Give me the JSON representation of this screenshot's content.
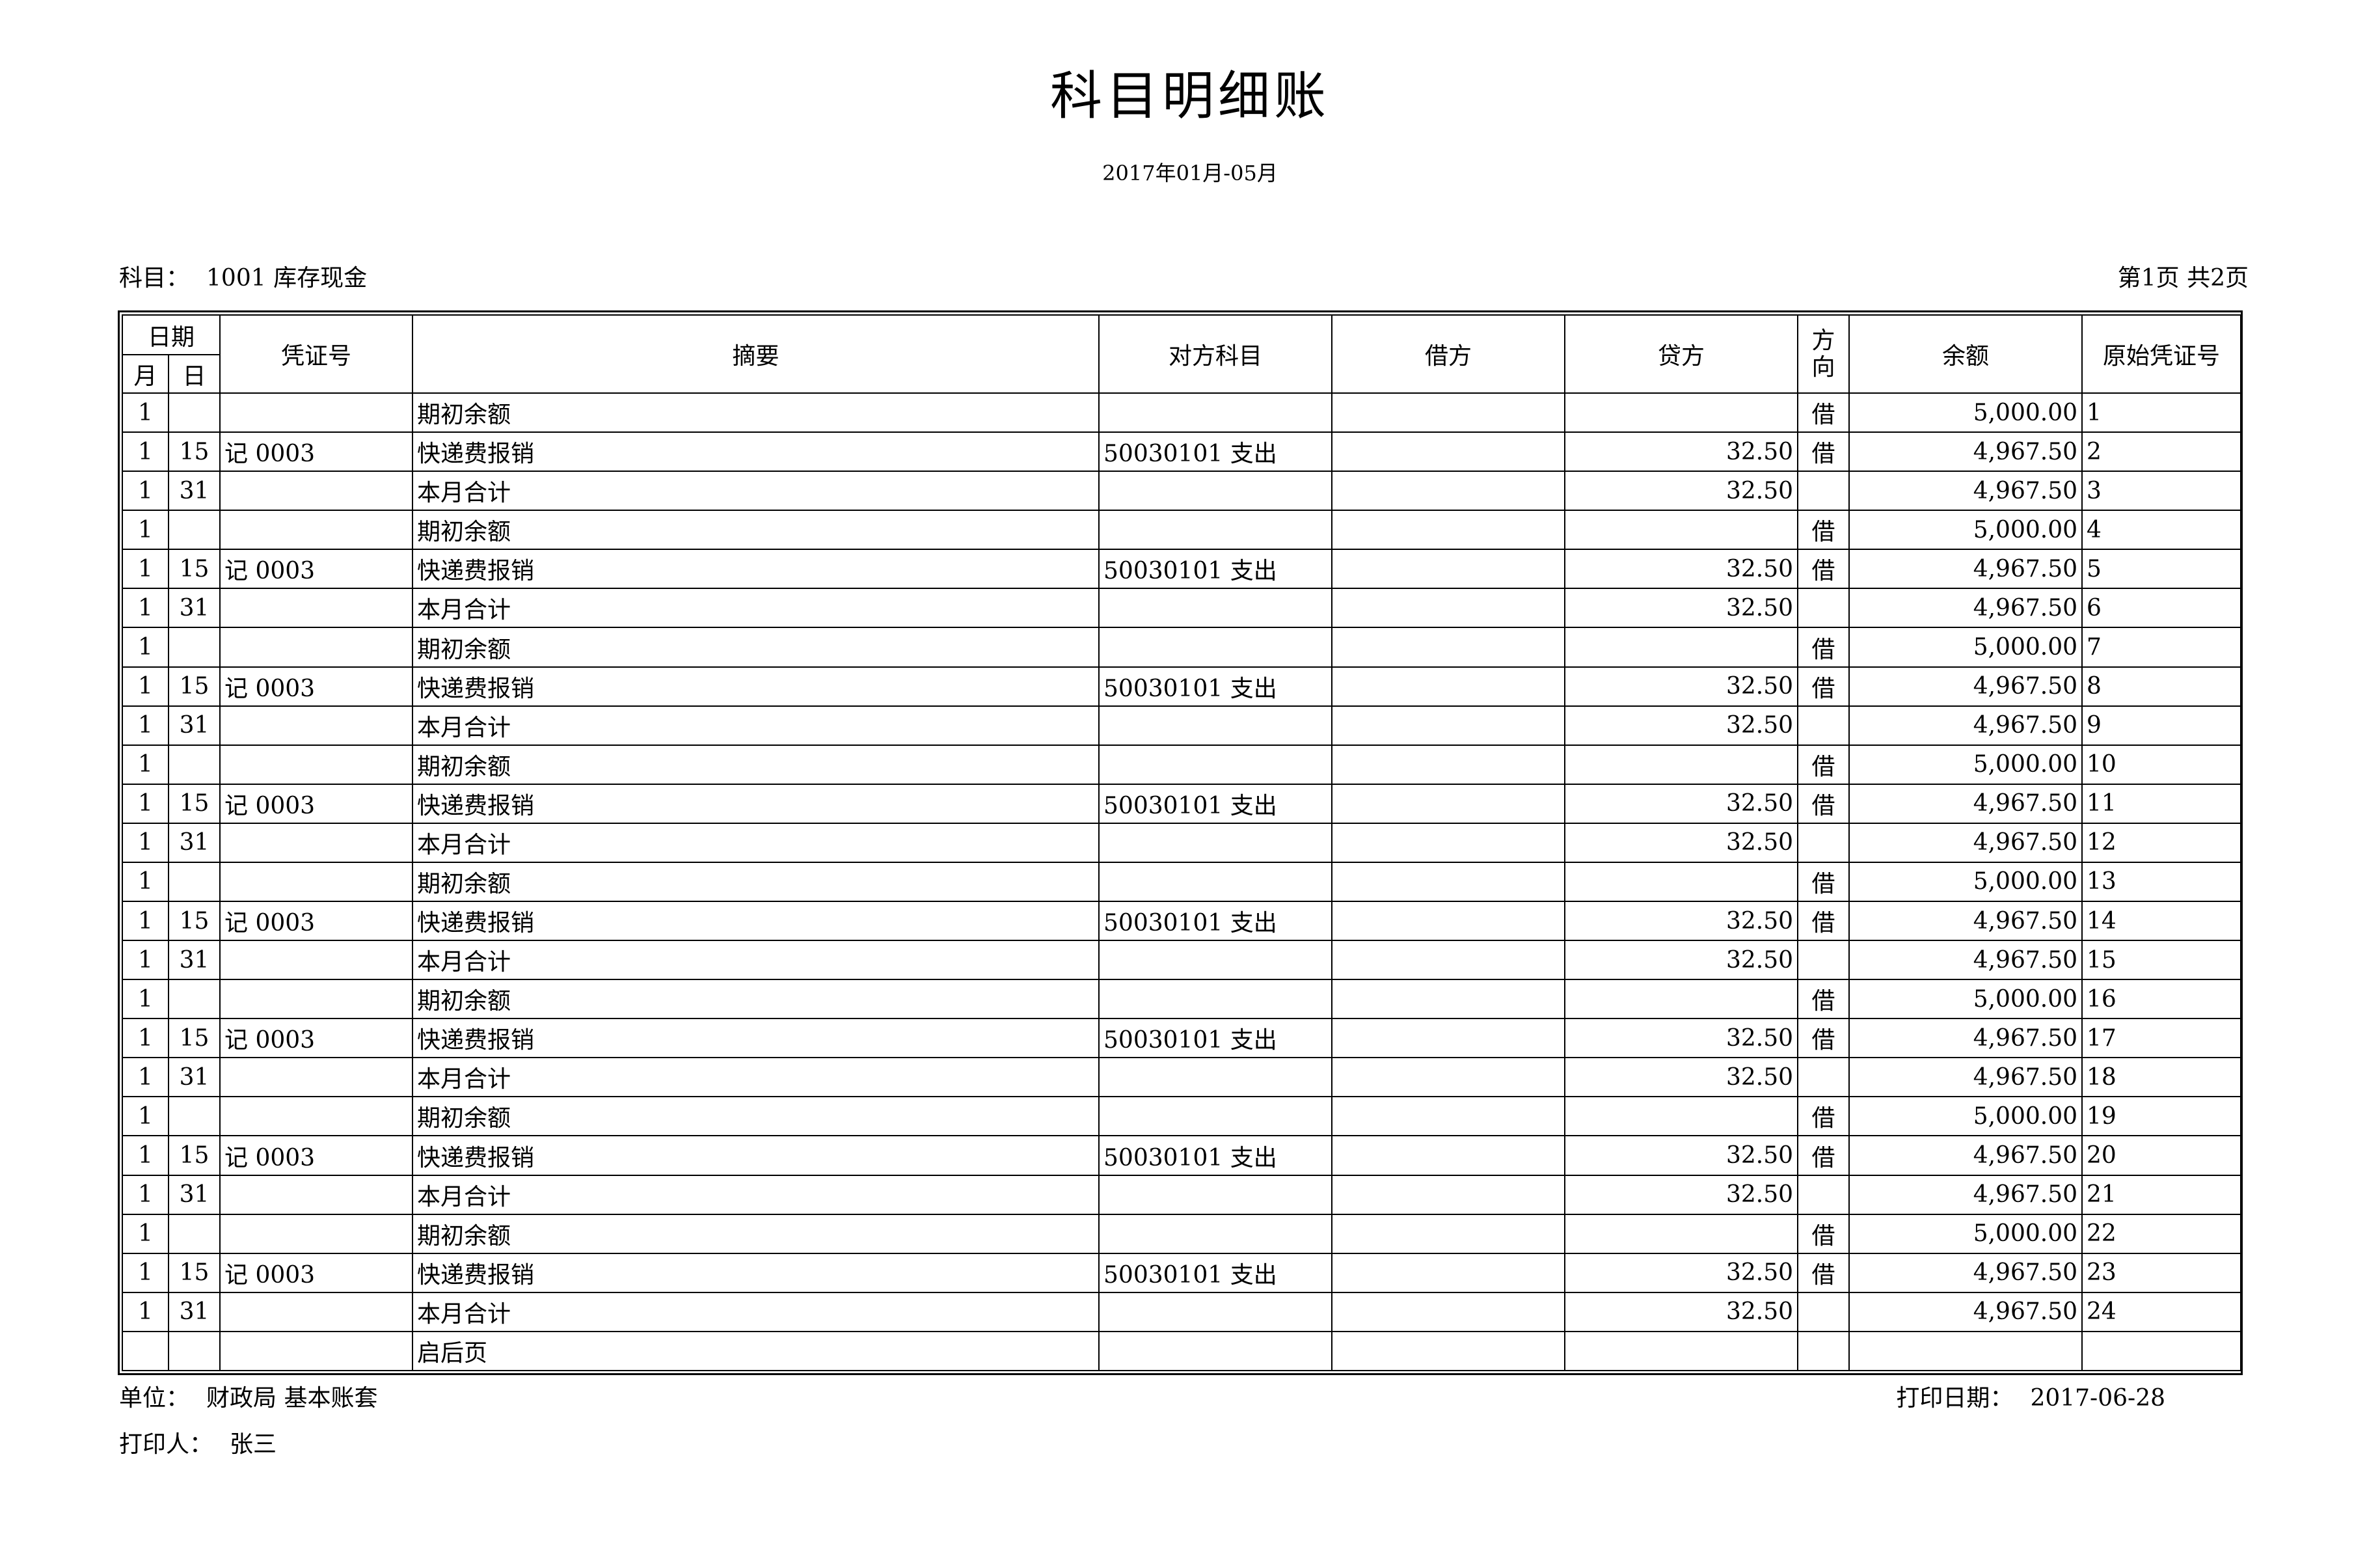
{
  "header": {
    "title": "科目明细账",
    "period": "2017年01月-05月",
    "subject_label": "科目：",
    "subject_value": "1001 库存现金",
    "page_info": "第1页 共2页"
  },
  "columns": {
    "date": "日期",
    "month": "月",
    "day": "日",
    "voucher_no": "凭证号",
    "summary": "摘要",
    "counter_account": "对方科目",
    "debit": "借方",
    "credit": "贷方",
    "direction_1": "方",
    "direction_2": "向",
    "balance": "余额",
    "original_voucher": "原始凭证号"
  },
  "rows": [
    {
      "month": "1",
      "day": "",
      "voucher": "",
      "summary": "期初余额",
      "account": "",
      "debit": "",
      "credit": "",
      "dir": "借",
      "balance": "5,000.00",
      "orig": "1"
    },
    {
      "month": "1",
      "day": "15",
      "voucher": "记 0003",
      "summary": "快递费报销",
      "account": "50030101 支出",
      "debit": "",
      "credit": "32.50",
      "dir": "借",
      "balance": "4,967.50",
      "orig": "2"
    },
    {
      "month": "1",
      "day": "31",
      "voucher": "",
      "summary": "本月合计",
      "account": "",
      "debit": "",
      "credit": "32.50",
      "dir": "",
      "balance": "4,967.50",
      "orig": "3"
    },
    {
      "month": "1",
      "day": "",
      "voucher": "",
      "summary": "期初余额",
      "account": "",
      "debit": "",
      "credit": "",
      "dir": "借",
      "balance": "5,000.00",
      "orig": "4"
    },
    {
      "month": "1",
      "day": "15",
      "voucher": "记 0003",
      "summary": "快递费报销",
      "account": "50030101 支出",
      "debit": "",
      "credit": "32.50",
      "dir": "借",
      "balance": "4,967.50",
      "orig": "5"
    },
    {
      "month": "1",
      "day": "31",
      "voucher": "",
      "summary": "本月合计",
      "account": "",
      "debit": "",
      "credit": "32.50",
      "dir": "",
      "balance": "4,967.50",
      "orig": "6"
    },
    {
      "month": "1",
      "day": "",
      "voucher": "",
      "summary": "期初余额",
      "account": "",
      "debit": "",
      "credit": "",
      "dir": "借",
      "balance": "5,000.00",
      "orig": "7"
    },
    {
      "month": "1",
      "day": "15",
      "voucher": "记 0003",
      "summary": "快递费报销",
      "account": "50030101 支出",
      "debit": "",
      "credit": "32.50",
      "dir": "借",
      "balance": "4,967.50",
      "orig": "8"
    },
    {
      "month": "1",
      "day": "31",
      "voucher": "",
      "summary": "本月合计",
      "account": "",
      "debit": "",
      "credit": "32.50",
      "dir": "",
      "balance": "4,967.50",
      "orig": "9"
    },
    {
      "month": "1",
      "day": "",
      "voucher": "",
      "summary": "期初余额",
      "account": "",
      "debit": "",
      "credit": "",
      "dir": "借",
      "balance": "5,000.00",
      "orig": "10"
    },
    {
      "month": "1",
      "day": "15",
      "voucher": "记 0003",
      "summary": "快递费报销",
      "account": "50030101 支出",
      "debit": "",
      "credit": "32.50",
      "dir": "借",
      "balance": "4,967.50",
      "orig": "11"
    },
    {
      "month": "1",
      "day": "31",
      "voucher": "",
      "summary": "本月合计",
      "account": "",
      "debit": "",
      "credit": "32.50",
      "dir": "",
      "balance": "4,967.50",
      "orig": "12"
    },
    {
      "month": "1",
      "day": "",
      "voucher": "",
      "summary": "期初余额",
      "account": "",
      "debit": "",
      "credit": "",
      "dir": "借",
      "balance": "5,000.00",
      "orig": "13"
    },
    {
      "month": "1",
      "day": "15",
      "voucher": "记 0003",
      "summary": "快递费报销",
      "account": "50030101 支出",
      "debit": "",
      "credit": "32.50",
      "dir": "借",
      "balance": "4,967.50",
      "orig": "14"
    },
    {
      "month": "1",
      "day": "31",
      "voucher": "",
      "summary": "本月合计",
      "account": "",
      "debit": "",
      "credit": "32.50",
      "dir": "",
      "balance": "4,967.50",
      "orig": "15"
    },
    {
      "month": "1",
      "day": "",
      "voucher": "",
      "summary": "期初余额",
      "account": "",
      "debit": "",
      "credit": "",
      "dir": "借",
      "balance": "5,000.00",
      "orig": "16"
    },
    {
      "month": "1",
      "day": "15",
      "voucher": "记 0003",
      "summary": "快递费报销",
      "account": "50030101 支出",
      "debit": "",
      "credit": "32.50",
      "dir": "借",
      "balance": "4,967.50",
      "orig": "17"
    },
    {
      "month": "1",
      "day": "31",
      "voucher": "",
      "summary": "本月合计",
      "account": "",
      "debit": "",
      "credit": "32.50",
      "dir": "",
      "balance": "4,967.50",
      "orig": "18"
    },
    {
      "month": "1",
      "day": "",
      "voucher": "",
      "summary": "期初余额",
      "account": "",
      "debit": "",
      "credit": "",
      "dir": "借",
      "balance": "5,000.00",
      "orig": "19"
    },
    {
      "month": "1",
      "day": "15",
      "voucher": "记 0003",
      "summary": "快递费报销",
      "account": "50030101 支出",
      "debit": "",
      "credit": "32.50",
      "dir": "借",
      "balance": "4,967.50",
      "orig": "20"
    },
    {
      "month": "1",
      "day": "31",
      "voucher": "",
      "summary": "本月合计",
      "account": "",
      "debit": "",
      "credit": "32.50",
      "dir": "",
      "balance": "4,967.50",
      "orig": "21"
    },
    {
      "month": "1",
      "day": "",
      "voucher": "",
      "summary": "期初余额",
      "account": "",
      "debit": "",
      "credit": "",
      "dir": "借",
      "balance": "5,000.00",
      "orig": "22"
    },
    {
      "month": "1",
      "day": "15",
      "voucher": "记 0003",
      "summary": "快递费报销",
      "account": "50030101 支出",
      "debit": "",
      "credit": "32.50",
      "dir": "借",
      "balance": "4,967.50",
      "orig": "23"
    },
    {
      "month": "1",
      "day": "31",
      "voucher": "",
      "summary": "本月合计",
      "account": "",
      "debit": "",
      "credit": "32.50",
      "dir": "",
      "balance": "4,967.50",
      "orig": "24"
    },
    {
      "month": "",
      "day": "",
      "voucher": "",
      "summary": "启后页",
      "account": "",
      "debit": "",
      "credit": "",
      "dir": "",
      "balance": "",
      "orig": ""
    }
  ],
  "footer": {
    "unit_label": "单位：",
    "unit_value": "财政局 基本账套",
    "print_date_label": "打印日期：",
    "print_date_value": "2017-06-28",
    "printer_label": "打印人：",
    "printer_value": "张三"
  }
}
